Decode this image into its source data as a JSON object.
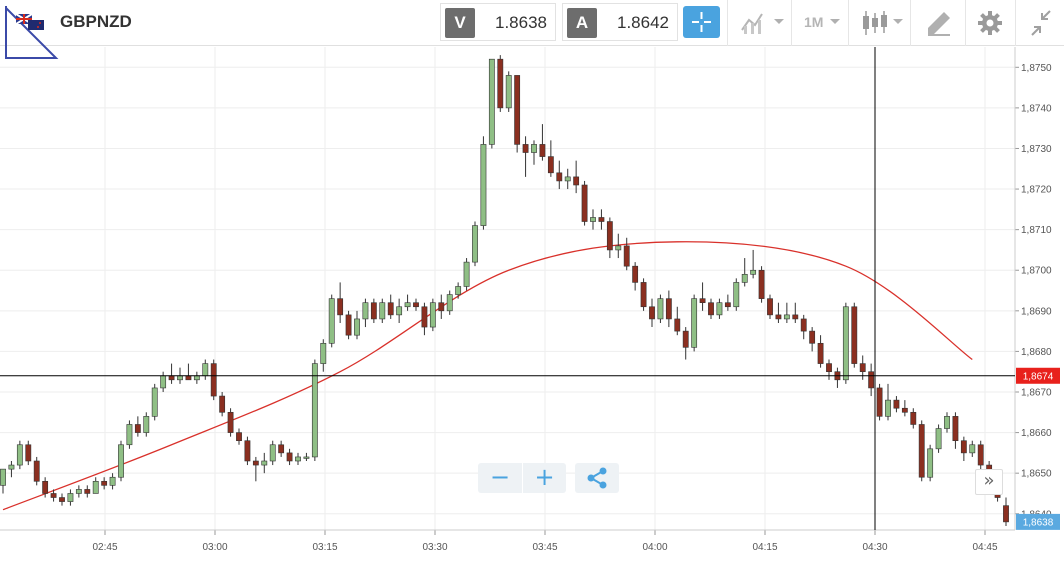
{
  "toolbar": {
    "symbol": "GBPNZD",
    "bid_label": "V",
    "bid_value": "1.8638",
    "ask_label": "A",
    "ask_value": "1.8642",
    "timeframe": "1M"
  },
  "chart": {
    "x_ticks": [
      "02:45",
      "03:00",
      "03:15",
      "03:30",
      "03:45",
      "04:00",
      "04:15",
      "04:30",
      "04:45"
    ],
    "y_ticks": [
      "1,8750",
      "1,8740",
      "1,8730",
      "1,8720",
      "1,8710",
      "1,8700",
      "1,8690",
      "1,8680",
      "1,8670",
      "1,8660",
      "1,8650",
      "1,8640"
    ],
    "crosshair_price": "1,8674",
    "current_price": "1,8638"
  },
  "colors": {
    "up": "#8fbf85",
    "down": "#8b2f20",
    "ma": "#d9312b",
    "accent": "#4aa3df",
    "crosshair_tag": "#e8211c"
  },
  "chart_data": {
    "type": "candlestick",
    "symbol": "GBPNZD",
    "interval": "1M",
    "x_ticks": [
      "02:45",
      "03:00",
      "03:15",
      "03:30",
      "03:45",
      "04:00",
      "04:15",
      "04:30",
      "04:45"
    ],
    "ylim": [
      1.8636,
      1.8755
    ],
    "crosshair": {
      "price": 1.8674,
      "time": "04:30"
    },
    "current_price": 1.8638,
    "candles": [
      [
        1.8647,
        1.8651,
        1.8645,
        1.8651
      ],
      [
        1.8651,
        1.8653,
        1.8649,
        1.8652
      ],
      [
        1.8652,
        1.8658,
        1.8651,
        1.8657
      ],
      [
        1.8657,
        1.8658,
        1.8652,
        1.8653
      ],
      [
        1.8653,
        1.8654,
        1.8647,
        1.8648
      ],
      [
        1.8648,
        1.8649,
        1.8644,
        1.8645
      ],
      [
        1.8645,
        1.8646,
        1.8643,
        1.8644
      ],
      [
        1.8644,
        1.8645,
        1.8642,
        1.8643
      ],
      [
        1.8643,
        1.8646,
        1.8642,
        1.8645
      ],
      [
        1.8645,
        1.8647,
        1.8644,
        1.8646
      ],
      [
        1.8646,
        1.8647,
        1.8644,
        1.8645
      ],
      [
        1.8645,
        1.8649,
        1.8645,
        1.8648
      ],
      [
        1.8648,
        1.8649,
        1.8646,
        1.8647
      ],
      [
        1.8647,
        1.865,
        1.8646,
        1.8649
      ],
      [
        1.8649,
        1.8658,
        1.8648,
        1.8657
      ],
      [
        1.8657,
        1.8663,
        1.8656,
        1.8662
      ],
      [
        1.8662,
        1.8664,
        1.8659,
        1.866
      ],
      [
        1.866,
        1.8665,
        1.8659,
        1.8664
      ],
      [
        1.8664,
        1.8672,
        1.8663,
        1.8671
      ],
      [
        1.8671,
        1.8675,
        1.867,
        1.8674
      ],
      [
        1.8674,
        1.8677,
        1.8672,
        1.8673
      ],
      [
        1.8673,
        1.8676,
        1.8672,
        1.8674
      ],
      [
        1.8674,
        1.8677,
        1.8673,
        1.8673
      ],
      [
        1.8673,
        1.8675,
        1.8672,
        1.8674
      ],
      [
        1.8674,
        1.8678,
        1.8673,
        1.8677
      ],
      [
        1.8677,
        1.8678,
        1.8668,
        1.8669
      ],
      [
        1.8669,
        1.867,
        1.8664,
        1.8665
      ],
      [
        1.8665,
        1.8666,
        1.8659,
        1.866
      ],
      [
        1.866,
        1.8661,
        1.8657,
        1.8658
      ],
      [
        1.8658,
        1.8659,
        1.8652,
        1.8653
      ],
      [
        1.8653,
        1.8654,
        1.8648,
        1.8652
      ],
      [
        1.8652,
        1.8655,
        1.865,
        1.8653
      ],
      [
        1.8653,
        1.8658,
        1.8652,
        1.8657
      ],
      [
        1.8657,
        1.8658,
        1.8654,
        1.8655
      ],
      [
        1.8655,
        1.8656,
        1.8652,
        1.8653
      ],
      [
        1.8653,
        1.8655,
        1.8652,
        1.8654
      ],
      [
        1.8654,
        1.8655,
        1.8653,
        1.8654
      ],
      [
        1.8654,
        1.8678,
        1.8653,
        1.8677
      ],
      [
        1.8677,
        1.8683,
        1.8675,
        1.8682
      ],
      [
        1.8682,
        1.8694,
        1.8681,
        1.8693
      ],
      [
        1.8693,
        1.8697,
        1.8687,
        1.8689
      ],
      [
        1.8689,
        1.869,
        1.8683,
        1.8684
      ],
      [
        1.8684,
        1.869,
        1.8683,
        1.8688
      ],
      [
        1.8688,
        1.8693,
        1.8686,
        1.8692
      ],
      [
        1.8692,
        1.8693,
        1.8687,
        1.8688
      ],
      [
        1.8688,
        1.8693,
        1.8687,
        1.8692
      ],
      [
        1.8692,
        1.8694,
        1.8688,
        1.8689
      ],
      [
        1.8689,
        1.8693,
        1.8687,
        1.8691
      ],
      [
        1.8691,
        1.8694,
        1.869,
        1.8692
      ],
      [
        1.8692,
        1.8693,
        1.869,
        1.8691
      ],
      [
        1.8691,
        1.8692,
        1.8684,
        1.8686
      ],
      [
        1.8686,
        1.8693,
        1.8685,
        1.8692
      ],
      [
        1.8692,
        1.8694,
        1.8688,
        1.869
      ],
      [
        1.869,
        1.8695,
        1.8689,
        1.8694
      ],
      [
        1.8694,
        1.8697,
        1.8693,
        1.8696
      ],
      [
        1.8696,
        1.8703,
        1.8695,
        1.8702
      ],
      [
        1.8702,
        1.8712,
        1.8701,
        1.8711
      ],
      [
        1.8711,
        1.8733,
        1.871,
        1.8731
      ],
      [
        1.8731,
        1.8752,
        1.873,
        1.8752
      ],
      [
        1.8752,
        1.8753,
        1.8739,
        1.874
      ],
      [
        1.874,
        1.8749,
        1.8739,
        1.8748
      ],
      [
        1.8748,
        1.8748,
        1.8729,
        1.8731
      ],
      [
        1.8731,
        1.8733,
        1.8723,
        1.8729
      ],
      [
        1.8729,
        1.8732,
        1.8726,
        1.8731
      ],
      [
        1.8731,
        1.8736,
        1.8727,
        1.8728
      ],
      [
        1.8728,
        1.8732,
        1.8723,
        1.8724
      ],
      [
        1.8724,
        1.8727,
        1.872,
        1.8722
      ],
      [
        1.8722,
        1.8725,
        1.872,
        1.8723
      ],
      [
        1.8723,
        1.8727,
        1.8719,
        1.8721
      ],
      [
        1.8721,
        1.8722,
        1.8711,
        1.8712
      ],
      [
        1.8712,
        1.8715,
        1.871,
        1.8713
      ],
      [
        1.8713,
        1.8715,
        1.871,
        1.8712
      ],
      [
        1.8712,
        1.8713,
        1.8703,
        1.8705
      ],
      [
        1.8705,
        1.8709,
        1.8703,
        1.8706
      ],
      [
        1.8706,
        1.8708,
        1.87,
        1.8701
      ],
      [
        1.8701,
        1.8702,
        1.8695,
        1.8697
      ],
      [
        1.8697,
        1.8698,
        1.869,
        1.8691
      ],
      [
        1.8691,
        1.8693,
        1.8686,
        1.8688
      ],
      [
        1.8688,
        1.8694,
        1.8687,
        1.8693
      ],
      [
        1.8693,
        1.8695,
        1.8686,
        1.8688
      ],
      [
        1.8688,
        1.8691,
        1.8684,
        1.8685
      ],
      [
        1.8685,
        1.8686,
        1.8678,
        1.8681
      ],
      [
        1.8681,
        1.8694,
        1.868,
        1.8693
      ],
      [
        1.8693,
        1.8697,
        1.869,
        1.8692
      ],
      [
        1.8692,
        1.8693,
        1.8688,
        1.8689
      ],
      [
        1.8689,
        1.8693,
        1.8688,
        1.8692
      ],
      [
        1.8692,
        1.8694,
        1.869,
        1.8691
      ],
      [
        1.8691,
        1.8698,
        1.869,
        1.8697
      ],
      [
        1.8697,
        1.8703,
        1.8696,
        1.8699
      ],
      [
        1.8699,
        1.8705,
        1.8698,
        1.87
      ],
      [
        1.87,
        1.8701,
        1.8692,
        1.8693
      ],
      [
        1.8693,
        1.8694,
        1.8688,
        1.8689
      ],
      [
        1.8689,
        1.8692,
        1.8687,
        1.8688
      ],
      [
        1.8688,
        1.8692,
        1.8687,
        1.8689
      ],
      [
        1.8689,
        1.8692,
        1.8687,
        1.8688
      ],
      [
        1.8688,
        1.8689,
        1.8683,
        1.8685
      ],
      [
        1.8685,
        1.8686,
        1.868,
        1.8682
      ],
      [
        1.8682,
        1.8684,
        1.8676,
        1.8677
      ],
      [
        1.8677,
        1.8678,
        1.8673,
        1.8675
      ],
      [
        1.8675,
        1.8676,
        1.8671,
        1.8673
      ],
      [
        1.8673,
        1.8692,
        1.8672,
        1.8691
      ],
      [
        1.8691,
        1.8692,
        1.8676,
        1.8677
      ],
      [
        1.8677,
        1.8679,
        1.8673,
        1.8675
      ],
      [
        1.8675,
        1.8677,
        1.8669,
        1.8671
      ],
      [
        1.8671,
        1.8672,
        1.8663,
        1.8664
      ],
      [
        1.8664,
        1.8672,
        1.8663,
        1.8668
      ],
      [
        1.8668,
        1.8669,
        1.8665,
        1.8666
      ],
      [
        1.8666,
        1.8668,
        1.8664,
        1.8665
      ],
      [
        1.8665,
        1.8666,
        1.8661,
        1.8662
      ],
      [
        1.8662,
        1.8663,
        1.8648,
        1.8649
      ],
      [
        1.8649,
        1.8657,
        1.8648,
        1.8656
      ],
      [
        1.8656,
        1.8662,
        1.8655,
        1.8661
      ],
      [
        1.8661,
        1.8665,
        1.866,
        1.8664
      ],
      [
        1.8664,
        1.8665,
        1.8656,
        1.8658
      ],
      [
        1.8658,
        1.8659,
        1.8653,
        1.8655
      ],
      [
        1.8655,
        1.8658,
        1.8654,
        1.8657
      ],
      [
        1.8657,
        1.8658,
        1.8651,
        1.8652
      ],
      [
        1.8652,
        1.8653,
        1.8648,
        1.8649
      ],
      [
        1.8649,
        1.865,
        1.8643,
        1.8644
      ],
      [
        1.8642,
        1.8644,
        1.8637,
        1.8638
      ]
    ],
    "moving_average": {
      "x": [
        0,
        20,
        40,
        60,
        80,
        100,
        115
      ],
      "y": [
        1.8641,
        1.8657,
        1.8675,
        1.87,
        1.8707,
        1.8701,
        1.8678
      ]
    }
  }
}
